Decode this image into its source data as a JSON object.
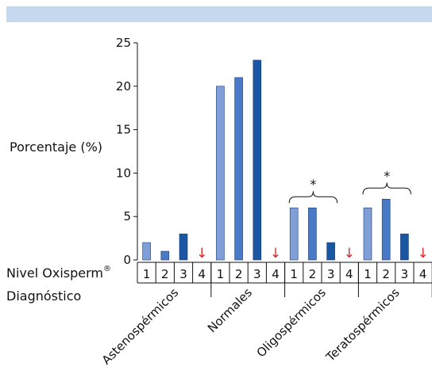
{
  "chart_data": {
    "type": "bar",
    "ylabel": "Porcentaje (%)",
    "ylim": [
      0,
      25
    ],
    "yticks": [
      "0",
      "5",
      "10",
      "15",
      "20",
      "25"
    ],
    "row_label_main": "Nivel Oxisperm",
    "row_label_sup": "®",
    "row_label_secondary": "Diagnóstico",
    "level_labels": [
      "1",
      "2",
      "3",
      "4"
    ],
    "level_colors": [
      "#7f9fd6",
      "#4a7ac6",
      "#1b56a2"
    ],
    "arrow_color": "#d8282a",
    "arrow_glyph": "↓",
    "significance_mark": "*",
    "groups": [
      {
        "name": "Astenospérmicos",
        "values": [
          2,
          1,
          3,
          null
        ],
        "significant": false
      },
      {
        "name": "Normales",
        "values": [
          20,
          21,
          23,
          null
        ],
        "significant": false
      },
      {
        "name": "Oligospérmicos",
        "values": [
          6,
          6,
          2,
          null
        ],
        "significant": true
      },
      {
        "name": "Teratospérmicos",
        "values": [
          6,
          7,
          3,
          null
        ],
        "significant": true
      }
    ]
  }
}
